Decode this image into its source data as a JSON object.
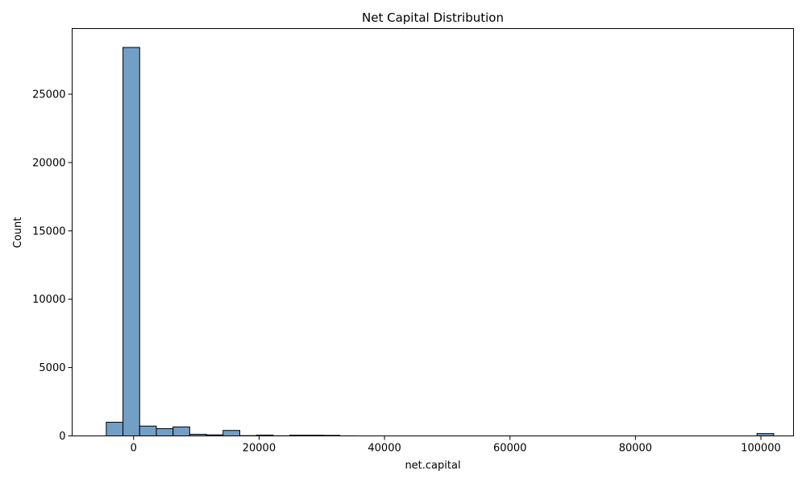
{
  "chart_data": {
    "type": "bar",
    "title": "Net Capital Distribution",
    "xlabel": "net.capital",
    "ylabel": "Count",
    "xlim": [
      -9800,
      105200
    ],
    "ylim": [
      0,
      29800
    ],
    "xticks": [
      0,
      20000,
      40000,
      60000,
      80000,
      100000
    ],
    "yticks": [
      0,
      5000,
      10000,
      15000,
      20000,
      25000
    ],
    "bin_width": 2660,
    "bin_start": -4356,
    "counts": [
      1000,
      28420,
      720,
      530,
      660,
      120,
      80,
      400,
      20,
      60,
      10,
      50,
      50,
      40,
      5,
      0,
      0,
      0,
      0,
      0,
      0,
      0,
      0,
      0,
      0,
      0,
      0,
      0,
      0,
      0,
      0,
      0,
      0,
      0,
      0,
      0,
      0,
      0,
      0,
      170
    ],
    "bar_color": "#729fc6",
    "edge_color": "#000000",
    "grid": false
  }
}
